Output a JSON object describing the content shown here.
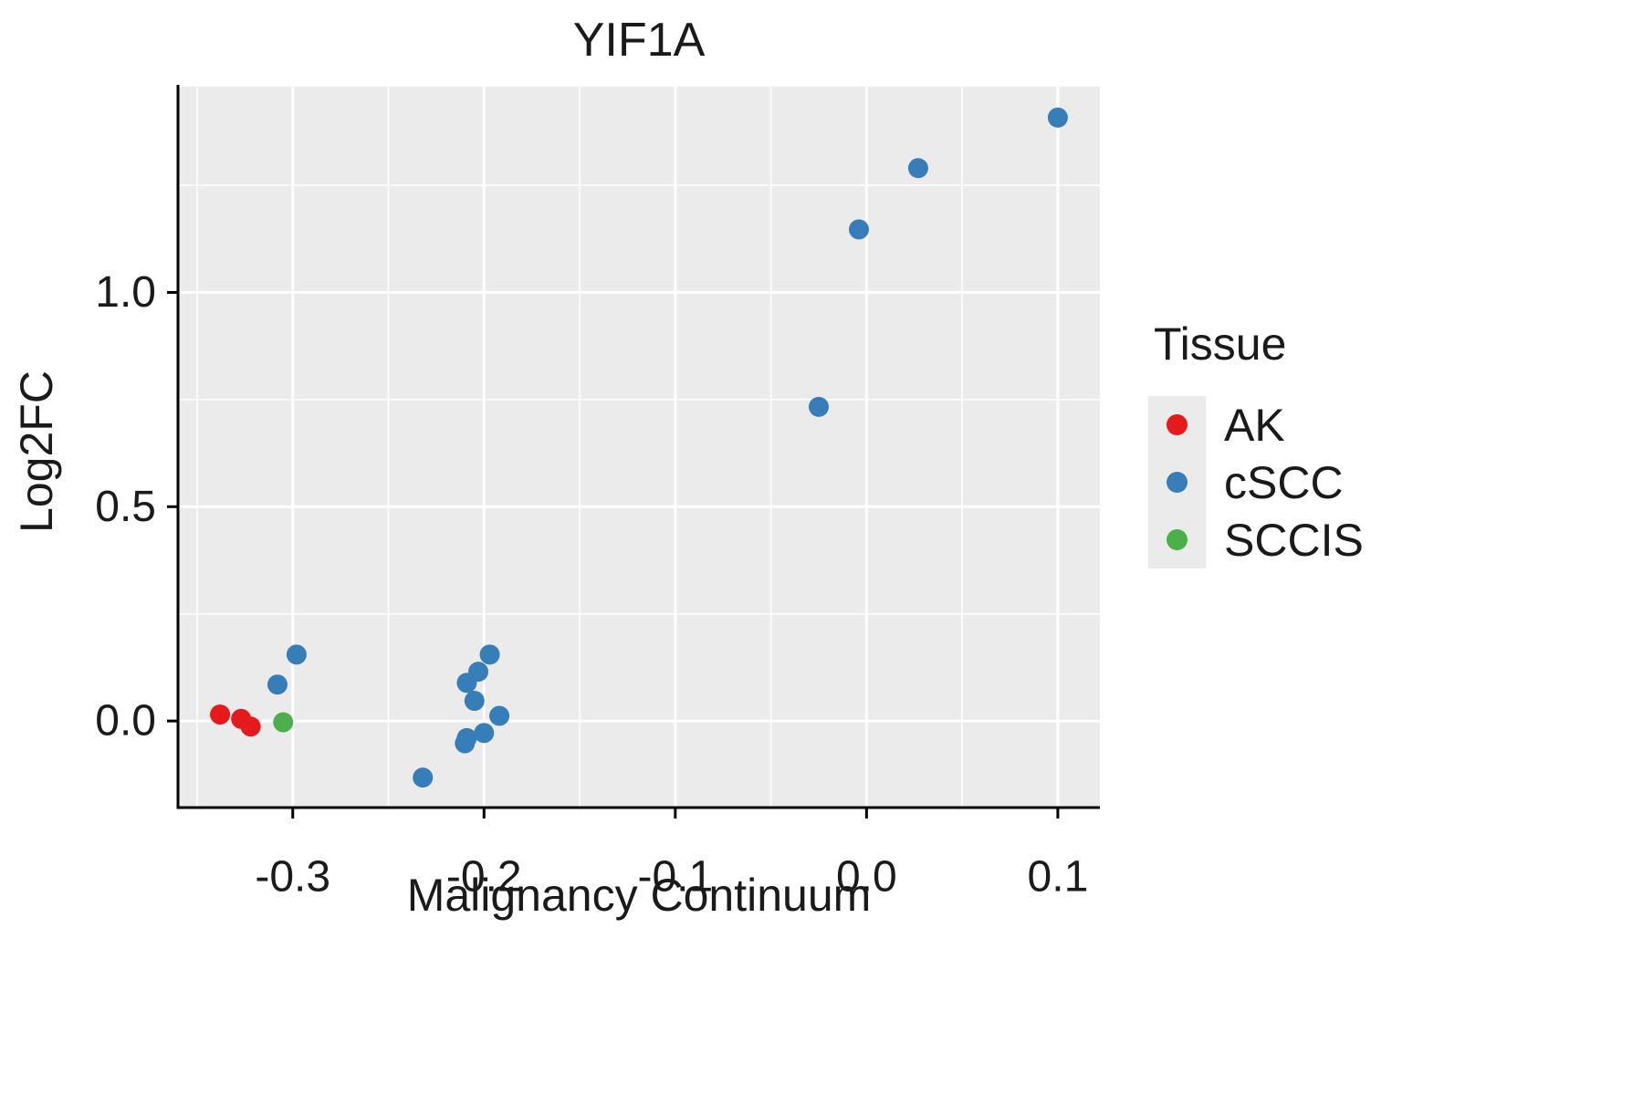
{
  "chart_data": {
    "type": "scatter",
    "title": "YIF1A",
    "xlabel": "Malignancy Continuum",
    "ylabel": "Log2FC",
    "xlim": [
      -0.36,
      0.122
    ],
    "ylim": [
      -0.202,
      1.48
    ],
    "x_ticks": [
      -0.3,
      -0.2,
      -0.1,
      0.0,
      0.1
    ],
    "x_tick_labels": [
      "-0.3",
      "-0.2",
      "-0.1",
      "0.0",
      "0.1"
    ],
    "x_minor_ticks": [
      -0.35,
      -0.25,
      -0.15,
      -0.05,
      0.05
    ],
    "y_ticks": [
      0.0,
      0.5,
      1.0
    ],
    "y_tick_labels": [
      "0.0",
      "0.5",
      "1.0"
    ],
    "y_minor_ticks": [
      0.25,
      0.75,
      1.25
    ],
    "panel_bg_color": "#EBEBEB",
    "grid_color": "#FFFFFF",
    "axis_color": "#000000",
    "point_radius": 11,
    "legend": {
      "title": "Tissue",
      "position": "right",
      "entries": [
        {
          "label": "AK",
          "color": "#E41A1C"
        },
        {
          "label": "cSCC",
          "color": "#377EB8"
        },
        {
          "label": "SCCIS",
          "color": "#4DAF4A"
        }
      ]
    },
    "series": [
      {
        "name": "AK",
        "color": "#E41A1C",
        "points": [
          [
            -0.338,
            0.015
          ],
          [
            -0.327,
            0.005
          ],
          [
            -0.322,
            -0.013
          ]
        ]
      },
      {
        "name": "cSCC",
        "color": "#377EB8",
        "points": [
          [
            -0.308,
            0.085
          ],
          [
            -0.298,
            0.155
          ],
          [
            -0.232,
            -0.132
          ],
          [
            -0.21,
            -0.052
          ],
          [
            -0.209,
            -0.04
          ],
          [
            -0.209,
            0.089
          ],
          [
            -0.205,
            0.047
          ],
          [
            -0.203,
            0.115
          ],
          [
            -0.2,
            -0.028
          ],
          [
            -0.197,
            0.155
          ],
          [
            -0.192,
            0.012
          ],
          [
            -0.025,
            0.733
          ],
          [
            -0.004,
            1.147
          ],
          [
            0.027,
            1.29
          ],
          [
            0.1,
            1.408
          ]
        ]
      },
      {
        "name": "SCCIS",
        "color": "#4DAF4A",
        "points": [
          [
            -0.305,
            -0.003
          ]
        ]
      }
    ]
  }
}
